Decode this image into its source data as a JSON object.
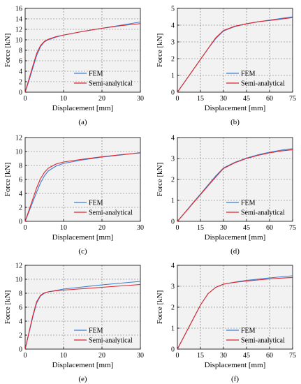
{
  "chart_data": [
    {
      "panel_label": "(a)",
      "type": "line",
      "xlabel": "Displacement [mm]",
      "ylabel": "Force [kN]",
      "xlim": [
        0,
        30
      ],
      "ylim": [
        0,
        16
      ],
      "xticks": [
        0,
        10,
        20,
        30
      ],
      "yticks": [
        0,
        2,
        4,
        6,
        8,
        10,
        12,
        14,
        16
      ],
      "grid": "dashed",
      "legend_position": "lower-right",
      "series": [
        {
          "name": "FEM",
          "color": "#3b7fd4",
          "x": [
            0,
            1,
            2,
            3,
            4,
            5,
            6,
            8,
            10,
            15,
            20,
            25,
            30
          ],
          "y": [
            0,
            2.2,
            4.6,
            7.0,
            8.7,
            9.6,
            10.0,
            10.5,
            10.9,
            11.6,
            12.2,
            12.8,
            13.4
          ]
        },
        {
          "name": "Semi-analytical",
          "color": "#e0242a",
          "x": [
            0,
            1,
            2,
            3,
            4,
            5,
            6,
            8,
            10,
            15,
            20,
            25,
            30
          ],
          "y": [
            0,
            2.5,
            5.0,
            7.4,
            8.9,
            9.7,
            10.1,
            10.6,
            10.9,
            11.6,
            12.2,
            12.7,
            13.1
          ]
        }
      ]
    },
    {
      "panel_label": "(b)",
      "type": "line",
      "xlabel": "Displacement [mm]",
      "ylabel": "Force [kN]",
      "xlim": [
        0,
        75
      ],
      "ylim": [
        0,
        5
      ],
      "xticks": [
        0,
        15,
        30,
        45,
        60,
        75
      ],
      "yticks": [
        0,
        1,
        2,
        3,
        4,
        5
      ],
      "grid": "dashed",
      "legend_position": "lower-right",
      "series": [
        {
          "name": "FEM",
          "color": "#3b7fd4",
          "x": [
            0,
            5,
            10,
            15,
            20,
            25,
            30,
            37.5,
            45,
            52.5,
            60,
            67.5,
            75
          ],
          "y": [
            0,
            0.65,
            1.3,
            1.95,
            2.6,
            3.2,
            3.65,
            3.92,
            4.08,
            4.2,
            4.3,
            4.4,
            4.5
          ]
        },
        {
          "name": "Semi-analytical",
          "color": "#e0242a",
          "x": [
            0,
            5,
            10,
            15,
            20,
            25,
            30,
            37.5,
            45,
            52.5,
            60,
            67.5,
            75
          ],
          "y": [
            0,
            0.65,
            1.3,
            1.95,
            2.6,
            3.25,
            3.68,
            3.94,
            4.08,
            4.2,
            4.28,
            4.36,
            4.45
          ]
        }
      ]
    },
    {
      "panel_label": "(c)",
      "type": "line",
      "xlabel": "Displacement [mm]",
      "ylabel": "Force [kN]",
      "xlim": [
        0,
        30
      ],
      "ylim": [
        0,
        12
      ],
      "xticks": [
        0,
        10,
        20,
        30
      ],
      "yticks": [
        0,
        2,
        4,
        6,
        8,
        10,
        12
      ],
      "grid": "dashed",
      "legend_position": "lower-right",
      "series": [
        {
          "name": "FEM",
          "color": "#3b7fd4",
          "x": [
            0,
            1,
            2,
            3,
            4,
            5,
            6,
            8,
            10,
            15,
            20,
            25,
            30
          ],
          "y": [
            0,
            1.4,
            2.8,
            4.2,
            5.5,
            6.5,
            7.2,
            7.9,
            8.3,
            8.8,
            9.2,
            9.5,
            9.85
          ]
        },
        {
          "name": "Semi-analytical",
          "color": "#e0242a",
          "x": [
            0,
            1,
            2,
            3,
            4,
            5,
            6,
            8,
            10,
            15,
            20,
            25,
            30
          ],
          "y": [
            0,
            1.6,
            3.2,
            4.8,
            6.1,
            7.0,
            7.6,
            8.2,
            8.5,
            8.9,
            9.25,
            9.55,
            9.8
          ]
        }
      ]
    },
    {
      "panel_label": "(d)",
      "type": "line",
      "xlabel": "Displacement [mm]",
      "ylabel": "Force [kN]",
      "xlim": [
        0,
        75
      ],
      "ylim": [
        0,
        4
      ],
      "xticks": [
        0,
        15,
        30,
        45,
        60,
        75
      ],
      "yticks": [
        0,
        1,
        2,
        3,
        4
      ],
      "grid": "dashed",
      "legend_position": "lower-right",
      "series": [
        {
          "name": "FEM",
          "color": "#3b7fd4",
          "x": [
            0,
            5,
            10,
            15,
            20,
            25,
            30,
            37.5,
            45,
            52.5,
            60,
            67.5,
            75
          ],
          "y": [
            0,
            0.43,
            0.87,
            1.3,
            1.74,
            2.17,
            2.55,
            2.82,
            3.02,
            3.18,
            3.3,
            3.4,
            3.47
          ]
        },
        {
          "name": "Semi-analytical",
          "color": "#e0242a",
          "x": [
            0,
            5,
            10,
            15,
            20,
            25,
            30,
            37.5,
            45,
            52.5,
            60,
            67.5,
            75
          ],
          "y": [
            0,
            0.42,
            0.85,
            1.27,
            1.7,
            2.12,
            2.52,
            2.8,
            3.0,
            3.15,
            3.27,
            3.36,
            3.42
          ]
        }
      ]
    },
    {
      "panel_label": "(e)",
      "type": "line",
      "xlabel": "Displacement [mm]",
      "ylabel": "Force [kN]",
      "xlim": [
        0,
        30
      ],
      "ylim": [
        0,
        12
      ],
      "xticks": [
        0,
        10,
        20,
        30
      ],
      "yticks": [
        0,
        2,
        4,
        6,
        8,
        10,
        12
      ],
      "grid": "dashed",
      "legend_position": "lower-right",
      "series": [
        {
          "name": "FEM",
          "color": "#3b7fd4",
          "x": [
            0,
            1,
            2,
            3,
            4,
            5,
            6,
            8,
            10,
            15,
            20,
            25,
            30
          ],
          "y": [
            0,
            2.3,
            4.6,
            6.6,
            7.6,
            8.0,
            8.2,
            8.4,
            8.6,
            8.9,
            9.2,
            9.45,
            9.7
          ]
        },
        {
          "name": "Semi-analytical",
          "color": "#e0242a",
          "x": [
            0,
            1,
            2,
            3,
            4,
            5,
            6,
            8,
            10,
            15,
            20,
            25,
            30
          ],
          "y": [
            0,
            2.4,
            4.8,
            6.8,
            7.7,
            8.05,
            8.2,
            8.35,
            8.45,
            8.65,
            8.85,
            9.05,
            9.25
          ]
        }
      ]
    },
    {
      "panel_label": "(f)",
      "type": "line",
      "xlabel": "Displacement [mm]",
      "ylabel": "Force [kN]",
      "xlim": [
        0,
        75
      ],
      "ylim": [
        0,
        4
      ],
      "xticks": [
        0,
        15,
        30,
        45,
        60,
        75
      ],
      "yticks": [
        0,
        1,
        2,
        3,
        4
      ],
      "grid": "dashed",
      "legend_position": "lower-right",
      "series": [
        {
          "name": "FEM",
          "color": "#3b7fd4",
          "x": [
            0,
            5,
            10,
            15,
            20,
            25,
            30,
            37.5,
            45,
            52.5,
            60,
            67.5,
            75
          ],
          "y": [
            0,
            0.7,
            1.4,
            2.1,
            2.65,
            2.95,
            3.1,
            3.2,
            3.28,
            3.34,
            3.4,
            3.45,
            3.5
          ]
        },
        {
          "name": "Semi-analytical",
          "color": "#e0242a",
          "x": [
            0,
            5,
            10,
            15,
            20,
            25,
            30,
            37.5,
            45,
            52.5,
            60,
            67.5,
            75
          ],
          "y": [
            0,
            0.7,
            1.4,
            2.1,
            2.65,
            2.95,
            3.1,
            3.19,
            3.25,
            3.3,
            3.35,
            3.39,
            3.42
          ]
        }
      ]
    }
  ]
}
